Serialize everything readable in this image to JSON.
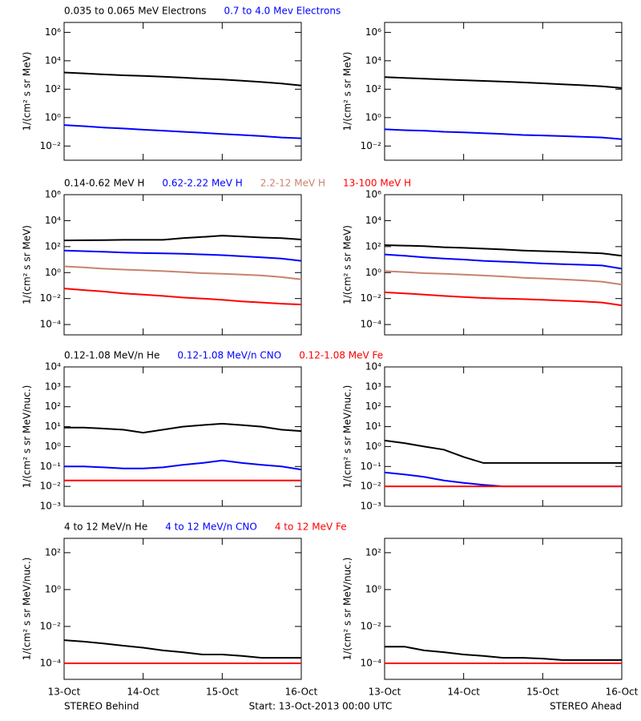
{
  "chart_data": [
    {
      "type": "line",
      "ylabel": "1/(cm² s sr MeV)",
      "log_scale": true,
      "xlim": [
        0,
        72
      ],
      "xticks": [
        0,
        24,
        48,
        72
      ],
      "ylim": [
        0.001,
        5000000
      ],
      "yticks": [
        {
          "value": 0.01,
          "label": "10⁻²"
        },
        {
          "value": 1,
          "label": "10⁰"
        },
        {
          "value": 100,
          "label": "10²"
        },
        {
          "value": 10000,
          "label": "10⁴"
        },
        {
          "value": 1000000,
          "label": "10⁶"
        }
      ],
      "x": [
        0,
        6,
        12,
        18,
        24,
        30,
        36,
        42,
        48,
        54,
        60,
        66,
        72
      ],
      "series": [
        {
          "name": "0.035 to 0.065 MeV Electrons",
          "color": "#000000",
          "values": [
            1500,
            1300,
            1100,
            950,
            850,
            750,
            650,
            550,
            480,
            400,
            320,
            250,
            180
          ]
        },
        {
          "name": "0.7 to 4.0 Mev Electrons",
          "color": "#0000ff",
          "values": [
            0.3,
            0.25,
            0.2,
            0.17,
            0.14,
            0.12,
            0.1,
            0.085,
            0.07,
            0.06,
            0.05,
            0.04,
            0.035
          ]
        }
      ]
    },
    {
      "type": "line",
      "ylabel": "1/(cm² s sr MeV)",
      "log_scale": true,
      "xlim": [
        0,
        72
      ],
      "xticks": [
        0,
        24,
        48,
        72
      ],
      "ylim": [
        0.001,
        5000000
      ],
      "yticks": [
        {
          "value": 0.01,
          "label": "10⁻²"
        },
        {
          "value": 1,
          "label": "10⁰"
        },
        {
          "value": 100,
          "label": "10²"
        },
        {
          "value": 10000,
          "label": "10⁴"
        },
        {
          "value": 1000000,
          "label": "10⁶"
        }
      ],
      "x": [
        0,
        6,
        12,
        18,
        24,
        30,
        36,
        42,
        48,
        54,
        60,
        66,
        72
      ],
      "series": [
        {
          "color": "#000000",
          "values": [
            700,
            620,
            550,
            480,
            430,
            380,
            340,
            300,
            260,
            220,
            190,
            160,
            120
          ]
        },
        {
          "color": "#0000ff",
          "values": [
            0.15,
            0.13,
            0.12,
            0.1,
            0.09,
            0.08,
            0.07,
            0.06,
            0.055,
            0.05,
            0.045,
            0.04,
            0.03
          ]
        }
      ]
    },
    {
      "type": "line",
      "ylabel": "1/(cm² s sr MeV)",
      "log_scale": true,
      "xlim": [
        0,
        72
      ],
      "xticks": [
        0,
        24,
        48,
        72
      ],
      "ylim": [
        1.6e-05,
        1000000
      ],
      "yticks": [
        {
          "value": 0.0001,
          "label": "10⁻⁴"
        },
        {
          "value": 0.01,
          "label": "10⁻²"
        },
        {
          "value": 1,
          "label": "10⁰"
        },
        {
          "value": 100,
          "label": "10²"
        },
        {
          "value": 10000,
          "label": "10⁴"
        },
        {
          "value": 1000000,
          "label": "10⁶"
        }
      ],
      "x": [
        0,
        6,
        12,
        18,
        24,
        30,
        36,
        42,
        48,
        54,
        60,
        66,
        72
      ],
      "series": [
        {
          "name": "0.14-0.62 MeV H",
          "color": "#000000",
          "values": [
            300,
            310,
            320,
            330,
            330,
            330,
            450,
            550,
            700,
            600,
            500,
            450,
            350
          ]
        },
        {
          "name": "0.62-2.22 MeV H",
          "color": "#0000ff",
          "values": [
            50,
            45,
            40,
            35,
            32,
            30,
            28,
            25,
            22,
            18,
            15,
            12,
            8
          ]
        },
        {
          "name": "2.2-12 MeV H",
          "color": "#c8826e",
          "values": [
            3,
            2.5,
            2,
            1.7,
            1.5,
            1.3,
            1.1,
            0.9,
            0.8,
            0.7,
            0.6,
            0.45,
            0.3
          ]
        },
        {
          "name": "13-100 MeV H",
          "color": "#ff0000",
          "values": [
            0.06,
            0.045,
            0.035,
            0.025,
            0.02,
            0.016,
            0.012,
            0.01,
            0.008,
            0.006,
            0.005,
            0.004,
            0.0035
          ]
        }
      ]
    },
    {
      "type": "line",
      "ylabel": "1/(cm² s sr MeV)",
      "log_scale": true,
      "xlim": [
        0,
        72
      ],
      "xticks": [
        0,
        24,
        48,
        72
      ],
      "ylim": [
        1.6e-05,
        1000000
      ],
      "yticks": [
        {
          "value": 0.0001,
          "label": "10⁻⁴"
        },
        {
          "value": 0.01,
          "label": "10⁻²"
        },
        {
          "value": 1,
          "label": "10⁰"
        },
        {
          "value": 100,
          "label": "10²"
        },
        {
          "value": 10000,
          "label": "10⁴"
        },
        {
          "value": 1000000,
          "label": "10⁶"
        }
      ],
      "x": [
        0,
        6,
        12,
        18,
        24,
        30,
        36,
        42,
        48,
        54,
        60,
        66,
        72
      ],
      "series": [
        {
          "color": "#000000",
          "values": [
            130,
            120,
            110,
            90,
            80,
            70,
            60,
            50,
            45,
            40,
            35,
            30,
            20
          ]
        },
        {
          "color": "#0000ff",
          "values": [
            25,
            20,
            15,
            12,
            10,
            8,
            7,
            6,
            5,
            4.5,
            4,
            3.5,
            2
          ]
        },
        {
          "color": "#c8826e",
          "values": [
            1.3,
            1.1,
            0.9,
            0.8,
            0.7,
            0.6,
            0.5,
            0.4,
            0.35,
            0.3,
            0.25,
            0.2,
            0.12
          ]
        },
        {
          "color": "#ff0000",
          "values": [
            0.03,
            0.025,
            0.02,
            0.016,
            0.013,
            0.011,
            0.01,
            0.009,
            0.008,
            0.007,
            0.006,
            0.005,
            0.003
          ]
        }
      ]
    },
    {
      "type": "line",
      "ylabel": "1/(cm² s sr MeV/nuc.)",
      "log_scale": true,
      "xlim": [
        0,
        72
      ],
      "xticks": [
        0,
        24,
        48,
        72
      ],
      "ylim": [
        0.001,
        10000
      ],
      "yticks": [
        {
          "value": 0.001,
          "label": "10⁻³"
        },
        {
          "value": 0.01,
          "label": "10⁻²"
        },
        {
          "value": 0.1,
          "label": "10⁻¹"
        },
        {
          "value": 1,
          "label": "10⁰"
        },
        {
          "value": 10,
          "label": "10¹"
        },
        {
          "value": 100,
          "label": "10²"
        },
        {
          "value": 1000,
          "label": "10³"
        },
        {
          "value": 10000,
          "label": "10⁴"
        }
      ],
      "x": [
        0,
        6,
        12,
        18,
        24,
        30,
        36,
        42,
        48,
        54,
        60,
        66,
        72
      ],
      "series": [
        {
          "name": "0.12-1.08 MeV/n He",
          "color": "#000000",
          "values": [
            9,
            9,
            8,
            7,
            5,
            7,
            10,
            12,
            14,
            12,
            10,
            7,
            6
          ]
        },
        {
          "name": "0.12-1.08 MeV/n CNO",
          "color": "#0000ff",
          "values": [
            0.1,
            0.1,
            0.09,
            0.08,
            0.08,
            0.09,
            0.12,
            0.15,
            0.2,
            0.15,
            0.12,
            0.1,
            0.07
          ]
        },
        {
          "name": "0.12-1.08 MeV Fe",
          "color": "#ff0000",
          "values": [
            0.02,
            0.02,
            0.02,
            0.02,
            0.02,
            0.02,
            0.02,
            0.02,
            0.02,
            0.02,
            0.02,
            0.02,
            0.02
          ]
        }
      ]
    },
    {
      "type": "line",
      "ylabel": "1/(cm² s sr MeV/nuc.)",
      "log_scale": true,
      "xlim": [
        0,
        72
      ],
      "xticks": [
        0,
        24,
        48,
        72
      ],
      "ylim": [
        0.001,
        10000
      ],
      "yticks": [
        {
          "value": 0.001,
          "label": "10⁻³"
        },
        {
          "value": 0.01,
          "label": "10⁻²"
        },
        {
          "value": 0.1,
          "label": "10⁻¹"
        },
        {
          "value": 1,
          "label": "10⁰"
        },
        {
          "value": 10,
          "label": "10¹"
        },
        {
          "value": 100,
          "label": "10²"
        },
        {
          "value": 1000,
          "label": "10³"
        },
        {
          "value": 10000,
          "label": "10⁴"
        }
      ],
      "x": [
        0,
        6,
        12,
        18,
        24,
        30,
        36,
        42,
        48,
        54,
        60,
        66,
        72
      ],
      "series": [
        {
          "color": "#000000",
          "values": [
            2,
            1.5,
            1,
            0.7,
            0.3,
            0.15,
            0.15,
            0.15,
            0.15,
            0.15,
            0.15,
            0.15,
            0.15
          ]
        },
        {
          "color": "#0000ff",
          "values": [
            0.05,
            0.04,
            0.03,
            0.02,
            0.015,
            0.012,
            0.01,
            0.01,
            0.01,
            0.01,
            0.01,
            0.01,
            0.01
          ]
        },
        {
          "color": "#ff0000",
          "values": [
            0.01,
            0.01,
            0.01,
            0.01,
            0.01,
            0.01,
            0.01,
            0.01,
            0.01,
            0.01,
            0.01,
            0.01,
            0.01
          ]
        }
      ]
    },
    {
      "type": "line",
      "ylabel": "1/(cm² s sr MeV/nuc.)",
      "log_scale": true,
      "xlim": [
        0,
        72
      ],
      "xticks": [
        {
          "value": 0,
          "label": "13-Oct"
        },
        {
          "value": 24,
          "label": "14-Oct"
        },
        {
          "value": 48,
          "label": "15-Oct"
        },
        {
          "value": 72,
          "label": "16-Oct"
        }
      ],
      "ylim": [
        1.35e-05,
        600
      ],
      "yticks": [
        {
          "value": 0.0001,
          "label": "10⁻⁴"
        },
        {
          "value": 0.01,
          "label": "10⁻²"
        },
        {
          "value": 1,
          "label": "10⁰"
        },
        {
          "value": 100,
          "label": "10²"
        }
      ],
      "x": [
        0,
        6,
        12,
        18,
        24,
        30,
        36,
        42,
        48,
        54,
        60,
        66,
        72
      ],
      "series": [
        {
          "name": "4 to 12 MeV/n He",
          "color": "#000000",
          "values": [
            0.0018,
            0.0015,
            0.0012,
            0.0009,
            0.0007,
            0.0005,
            0.0004,
            0.0003,
            0.0003,
            0.00025,
            0.0002,
            0.0002,
            0.0002
          ]
        },
        {
          "name": "4 to 12 MeV/n CNO",
          "color": "#0000ff",
          "values": [
            0.0001,
            0.0001,
            0.0001,
            0.0001,
            0.0001,
            0.0001,
            0.0001,
            0.0001,
            0.0001,
            0.0001,
            0.0001,
            0.0001,
            0.0001
          ]
        },
        {
          "name": "4 to 12 MeV Fe",
          "color": "#ff0000",
          "values": [
            0.0001,
            0.0001,
            0.0001,
            0.0001,
            0.0001,
            0.0001,
            0.0001,
            0.0001,
            0.0001,
            0.0001,
            0.0001,
            0.0001,
            0.0001
          ]
        }
      ]
    },
    {
      "type": "line",
      "ylabel": "1/(cm² s sr MeV/nuc.)",
      "log_scale": true,
      "xlim": [
        0,
        72
      ],
      "xticks": [
        {
          "value": 0,
          "label": "13-Oct"
        },
        {
          "value": 24,
          "label": "14-Oct"
        },
        {
          "value": 48,
          "label": "15-Oct"
        },
        {
          "value": 72,
          "label": "16-Oct"
        }
      ],
      "ylim": [
        1.35e-05,
        600
      ],
      "yticks": [
        {
          "value": 0.0001,
          "label": "10⁻⁴"
        },
        {
          "value": 0.01,
          "label": "10⁻²"
        },
        {
          "value": 1,
          "label": "10⁰"
        },
        {
          "value": 100,
          "label": "10²"
        }
      ],
      "x": [
        0,
        6,
        12,
        18,
        24,
        30,
        36,
        42,
        48,
        54,
        60,
        66,
        72
      ],
      "series": [
        {
          "color": "#000000",
          "values": [
            0.0008,
            0.0008,
            0.0005,
            0.0004,
            0.0003,
            0.00025,
            0.0002,
            0.0002,
            0.00018,
            0.00015,
            0.00015,
            0.00015,
            0.00015
          ]
        },
        {
          "color": "#0000ff",
          "values": [
            0.0001,
            0.0001,
            0.0001,
            0.0001,
            0.0001,
            0.0001,
            0.0001,
            0.0001,
            0.0001,
            0.0001,
            0.0001,
            0.0001,
            0.0001
          ]
        },
        {
          "color": "#ff0000",
          "values": [
            0.0001,
            0.0001,
            0.0001,
            0.0001,
            0.0001,
            0.0001,
            0.0001,
            0.0001,
            0.0001,
            0.0001,
            0.0001,
            0.0001,
            0.0001
          ]
        }
      ]
    }
  ],
  "footer": {
    "left": "STEREO Behind",
    "center": "Start: 13-Oct-2013 00:00 UTC",
    "right": "STEREO Ahead"
  }
}
